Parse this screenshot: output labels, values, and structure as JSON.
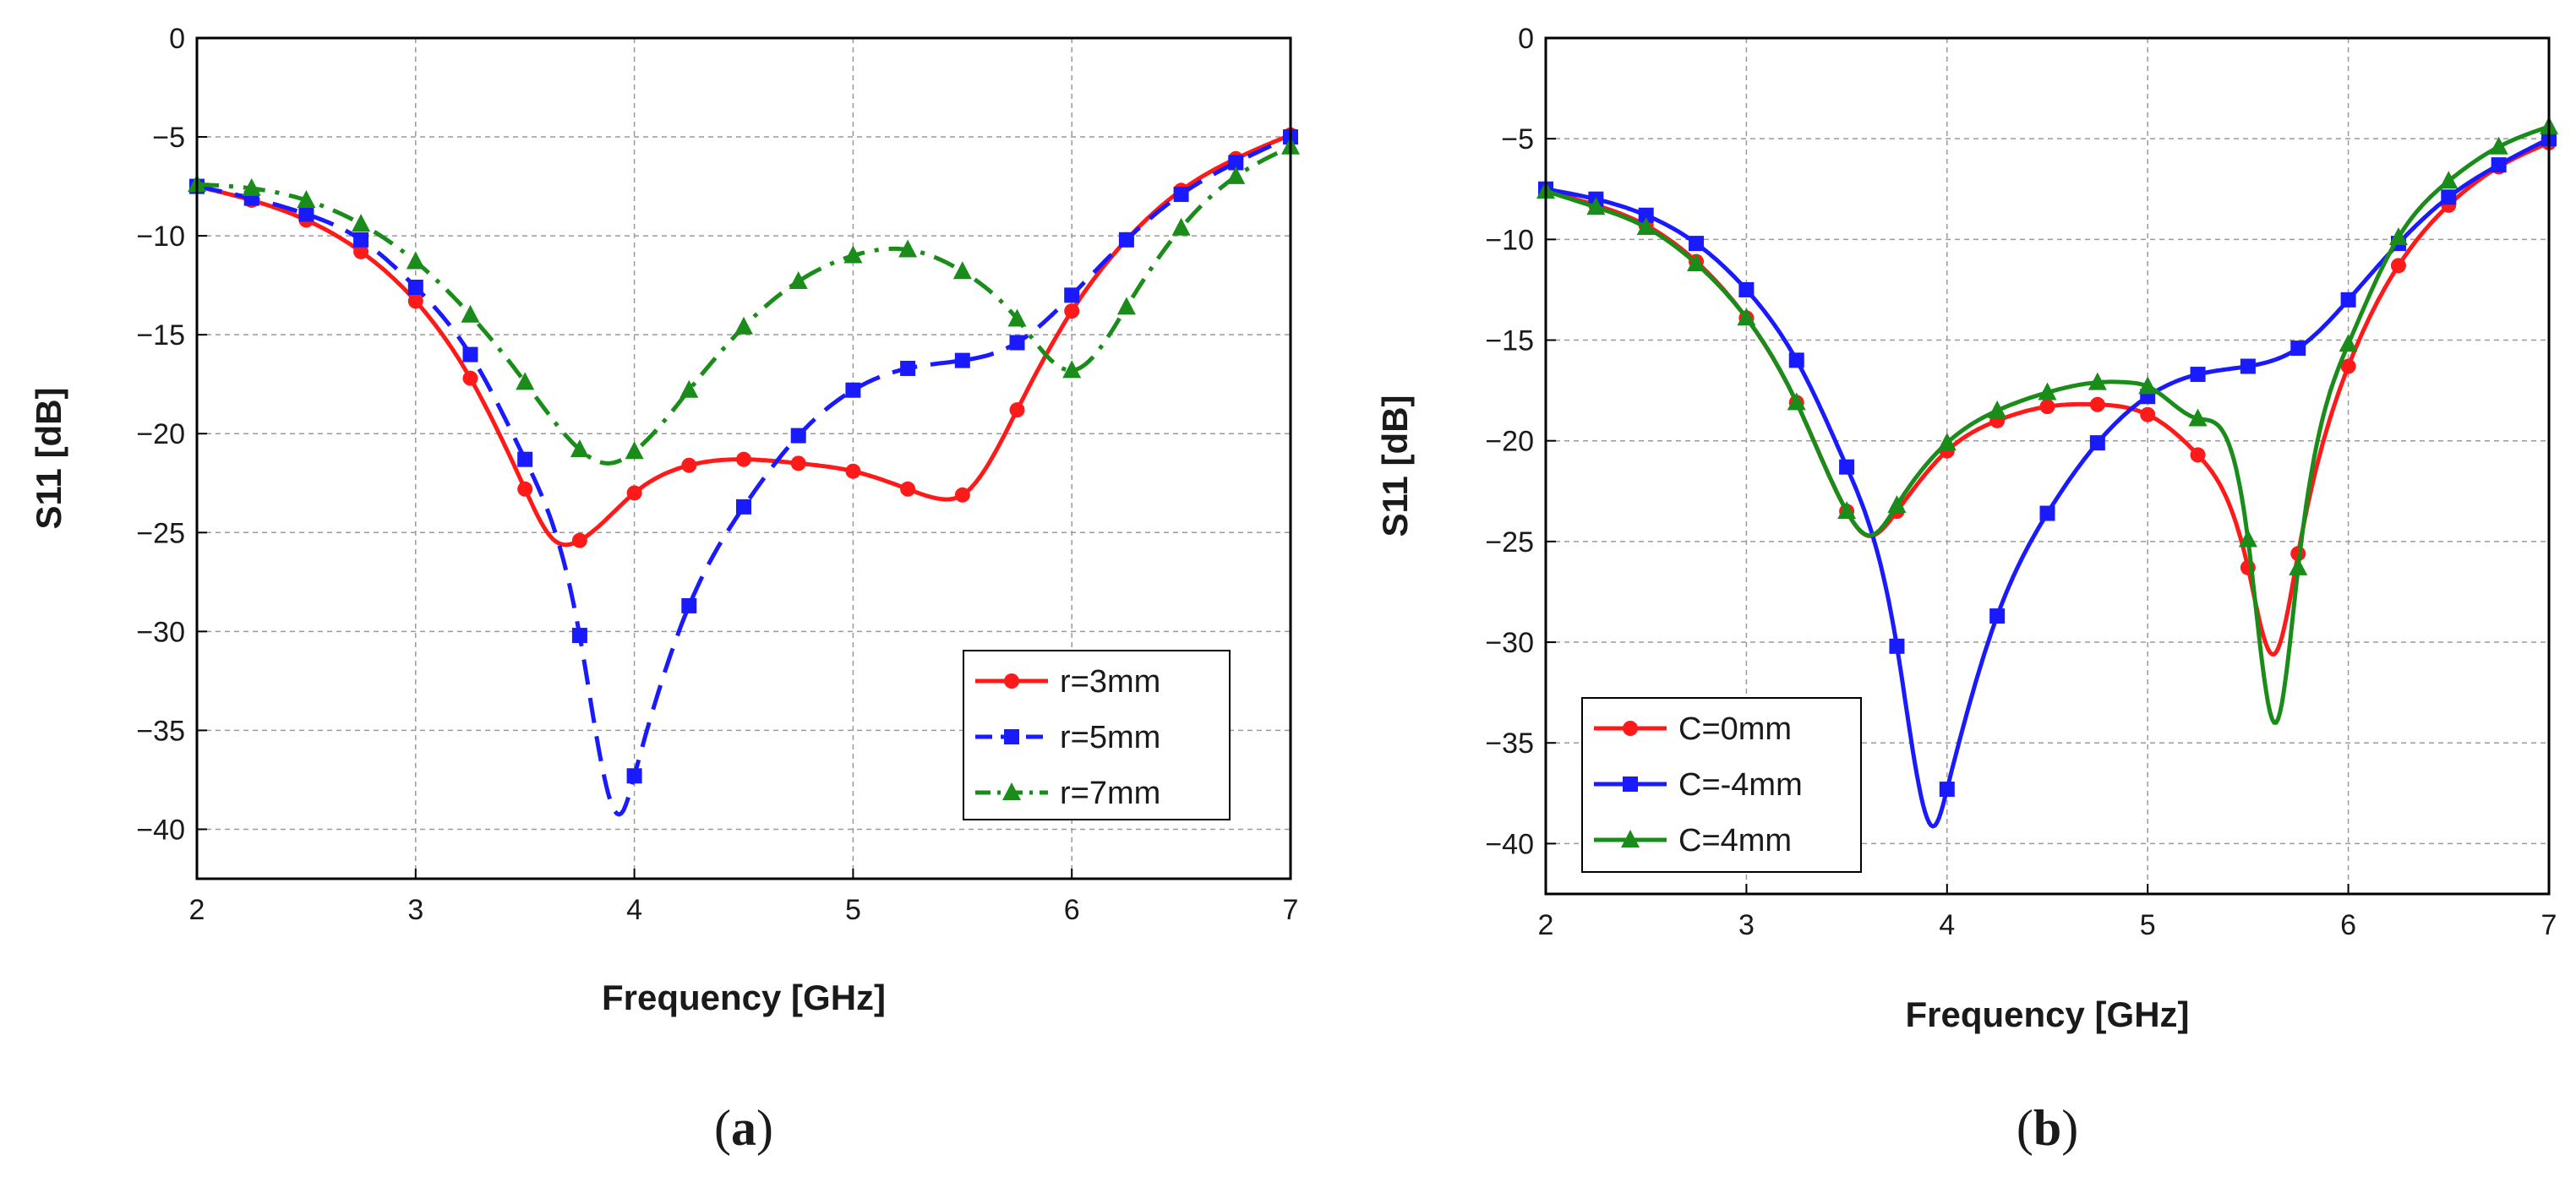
{
  "chart_data": [
    {
      "type": "line",
      "panel": "a",
      "panel_label": {
        "open": "(",
        "letter": "a",
        "close": ")"
      },
      "xlabel": "Frequency   [GHz]",
      "ylabel": "S11   [dB]",
      "xlim": [
        2,
        7
      ],
      "ylim": [
        -42.5,
        0
      ],
      "xticks": [
        2,
        3,
        4,
        5,
        6,
        7
      ],
      "yticks": [
        0,
        -5,
        -10,
        -15,
        -20,
        -25,
        -30,
        -35,
        -40
      ],
      "grid": true,
      "legend_position": "bottom-right",
      "series": [
        {
          "name": "r=3mm",
          "color": "#ff1a1a",
          "marker": "circle",
          "dash": "solid",
          "x": [
            2,
            2.25,
            2.5,
            2.75,
            3,
            3.25,
            3.5,
            3.625,
            3.75,
            4,
            4.25,
            4.5,
            4.75,
            5,
            5.25,
            5.4,
            5.5,
            5.75,
            6,
            6.25,
            6.5,
            6.75,
            7
          ],
          "y": [
            -7.5,
            -8.2,
            -9.2,
            -10.8,
            -13.3,
            -17.2,
            -22.8,
            -25.3,
            -25.4,
            -23,
            -21.6,
            -21.3,
            -21.5,
            -21.9,
            -22.8,
            -23.3,
            -23.1,
            -18.8,
            -13.8,
            -10.2,
            -7.7,
            -6.1,
            -4.9
          ],
          "markers_x": [
            2,
            2.25,
            2.5,
            2.75,
            3,
            3.25,
            3.5,
            3.75,
            4,
            4.25,
            4.5,
            4.75,
            5,
            5.25,
            5.5,
            5.75,
            6,
            6.25,
            6.5,
            6.75,
            7
          ]
        },
        {
          "name": "r=5mm",
          "color": "#1a1aff",
          "marker": "square",
          "dash": "dashed",
          "x": [
            2,
            2.25,
            2.5,
            2.75,
            3,
            3.25,
            3.5,
            3.75,
            3.94,
            4,
            4.25,
            4.5,
            4.75,
            5,
            5.25,
            5.5,
            5.75,
            6,
            6.25,
            6.5,
            6.75,
            7
          ],
          "y": [
            -7.5,
            -8.1,
            -8.9,
            -10.2,
            -12.6,
            -16,
            -21.3,
            -30.2,
            -39.2,
            -37.3,
            -28.7,
            -23.7,
            -20.1,
            -17.8,
            -16.7,
            -16.3,
            -15.4,
            -13,
            -10.2,
            -7.9,
            -6.3,
            -5
          ],
          "markers_x": [
            2,
            2.25,
            2.5,
            2.75,
            3,
            3.25,
            3.5,
            3.75,
            4,
            4.25,
            4.5,
            4.75,
            5,
            5.25,
            5.5,
            5.75,
            6,
            6.25,
            6.5,
            6.75,
            7
          ]
        },
        {
          "name": "r=7mm",
          "color": "#1a8c1a",
          "marker": "triangle",
          "dash": "dashdot",
          "x": [
            2,
            2.25,
            2.5,
            2.75,
            3,
            3.25,
            3.5,
            3.75,
            3.88,
            4,
            4.25,
            4.5,
            4.75,
            5,
            5.25,
            5.5,
            5.75,
            6,
            6.25,
            6.5,
            6.75,
            7
          ],
          "y": [
            -7.4,
            -7.6,
            -8.2,
            -9.4,
            -11.3,
            -14,
            -17.4,
            -20.8,
            -21.5,
            -20.9,
            -17.8,
            -14.6,
            -12.3,
            -11,
            -10.7,
            -11.8,
            -14.2,
            -16.8,
            -13.6,
            -9.6,
            -7,
            -5.5
          ],
          "markers_x": [
            2,
            2.25,
            2.5,
            2.75,
            3,
            3.25,
            3.5,
            3.75,
            4,
            4.25,
            4.5,
            4.75,
            5,
            5.25,
            5.5,
            5.75,
            6,
            6.25,
            6.5,
            6.75,
            7
          ]
        }
      ]
    },
    {
      "type": "line",
      "panel": "b",
      "panel_label": {
        "open": "(",
        "letter": "b",
        "close": ")"
      },
      "xlabel": "Frequency   [GHz]",
      "ylabel": "S11   [dB]",
      "xlim": [
        2,
        7
      ],
      "ylim": [
        -42.5,
        0
      ],
      "xticks": [
        2,
        3,
        4,
        5,
        6,
        7
      ],
      "yticks": [
        0,
        -5,
        -10,
        -15,
        -20,
        -25,
        -30,
        -35,
        -40
      ],
      "grid": true,
      "legend_position": "bottom-left",
      "series": [
        {
          "name": "C=0mm",
          "color": "#ff1a1a",
          "marker": "circle",
          "dash": "solid",
          "x": [
            2,
            2.25,
            2.5,
            2.75,
            3,
            3.25,
            3.5,
            3.6,
            3.75,
            4,
            4.25,
            4.5,
            4.75,
            5,
            5.25,
            5.5,
            5.63,
            5.75,
            6,
            6.25,
            6.5,
            6.75,
            7
          ],
          "y": [
            -7.6,
            -8.3,
            -9.3,
            -11.1,
            -13.9,
            -18.1,
            -23.5,
            -24.7,
            -23.5,
            -20.5,
            -19,
            -18.3,
            -18.2,
            -18.7,
            -20.7,
            -26.3,
            -30.6,
            -25.6,
            -16.3,
            -11.3,
            -8.3,
            -6.4,
            -5.2
          ],
          "markers_x": [
            2,
            2.25,
            2.5,
            2.75,
            3,
            3.25,
            3.5,
            3.75,
            4,
            4.25,
            4.5,
            4.75,
            5,
            5.25,
            5.5,
            5.75,
            6,
            6.25,
            6.5,
            6.75,
            7
          ]
        },
        {
          "name": "C=-4mm",
          "color": "#1a1aff",
          "marker": "square",
          "dash": "solid",
          "x": [
            2,
            2.25,
            2.5,
            2.75,
            3,
            3.25,
            3.5,
            3.75,
            3.94,
            4,
            4.25,
            4.5,
            4.75,
            5,
            5.25,
            5.5,
            5.75,
            6,
            6.25,
            6.5,
            6.75,
            7
          ],
          "y": [
            -7.5,
            -8,
            -8.8,
            -10.2,
            -12.5,
            -16,
            -21.3,
            -30.2,
            -39.1,
            -37.3,
            -28.7,
            -23.6,
            -20.1,
            -17.8,
            -16.7,
            -16.3,
            -15.4,
            -13,
            -10.2,
            -7.9,
            -6.3,
            -5
          ],
          "markers_x": [
            2,
            2.25,
            2.5,
            2.75,
            3,
            3.25,
            3.5,
            3.75,
            4,
            4.25,
            4.5,
            4.75,
            5,
            5.25,
            5.5,
            5.75,
            6,
            6.25,
            6.5,
            6.75,
            7
          ]
        },
        {
          "name": "C=4mm",
          "color": "#1a8c1a",
          "marker": "triangle",
          "dash": "solid",
          "x": [
            2,
            2.25,
            2.5,
            2.75,
            3,
            3.25,
            3.5,
            3.62,
            3.75,
            4,
            4.25,
            4.5,
            4.75,
            4.9,
            5,
            5.25,
            5.5,
            5.64,
            5.75,
            6,
            6.25,
            6.5,
            6.75,
            7
          ],
          "y": [
            -7.6,
            -8.4,
            -9.4,
            -11.2,
            -13.9,
            -18.1,
            -23.5,
            -24.7,
            -23.2,
            -20.1,
            -18.5,
            -17.6,
            -17.1,
            -17.1,
            -17.3,
            -18.9,
            -24.9,
            -34,
            -26.3,
            -15.2,
            -9.9,
            -7.1,
            -5.4,
            -4.4
          ],
          "markers_x": [
            2,
            2.25,
            2.5,
            2.75,
            3,
            3.25,
            3.5,
            3.75,
            4,
            4.25,
            4.5,
            4.75,
            5,
            5.25,
            5.5,
            5.75,
            6,
            6.25,
            6.5,
            6.75,
            7
          ]
        }
      ]
    }
  ]
}
